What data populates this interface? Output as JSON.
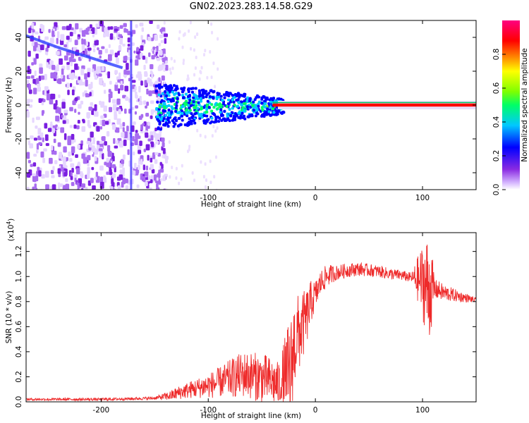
{
  "title": "GN02.2023.283.14.58.G29",
  "chart_data": [
    {
      "type": "heatmap",
      "title": "",
      "xlabel": "Height of straight line (km)",
      "ylabel": "Frequency (Hz)",
      "xlim": [
        -270,
        150
      ],
      "ylim": [
        -50,
        50
      ],
      "xticks": [
        -200,
        -100,
        0,
        100
      ],
      "yticks": [
        -40,
        -20,
        0,
        20,
        40
      ],
      "xtick_labels": [
        "-200",
        "-100",
        "0",
        "100"
      ],
      "ytick_labels": [
        "-40",
        "-20",
        "0",
        "20",
        "40"
      ],
      "colorbar": {
        "label": "Normalized spectral amplitude",
        "range": [
          0.0,
          1.0
        ],
        "ticks": [
          0.0,
          0.2,
          0.4,
          0.6,
          0.8
        ],
        "tick_labels": [
          "0.0",
          "0.2",
          "0.4",
          "0.6",
          "0.8"
        ],
        "colormap": [
          "#ffffff",
          "#d6b8ff",
          "#8a2be2",
          "#0000ff",
          "#00c8ff",
          "#00ff66",
          "#7fff00",
          "#ffff00",
          "#ff8c00",
          "#ff0000",
          "#ff0080"
        ]
      },
      "features": {
        "carrier_line_frequency_hz": 0,
        "strong_carrier_from_km": -35,
        "noise_region_km": [
          -270,
          -150
        ],
        "scintillation_region_km": [
          -150,
          -35
        ],
        "bright_vertical_stripe_km": -172,
        "diagonal_trace_points": [
          [
            -270,
            41
          ],
          [
            -240,
            34
          ],
          [
            -210,
            28
          ],
          [
            -180,
            22
          ]
        ]
      }
    },
    {
      "type": "line",
      "title": "",
      "xlabel": "Height of straight line (km)",
      "ylabel": "SNR (10 * v/v)",
      "multiplier_label": "(x10",
      "multiplier_exponent": "4",
      "multiplier_close": ")",
      "xlim": [
        -270,
        150
      ],
      "ylim": [
        0,
        1.35
      ],
      "xticks": [
        -200,
        -100,
        0,
        100
      ],
      "yticks": [
        0.0,
        0.2,
        0.4,
        0.6,
        0.8,
        1.0,
        1.2
      ],
      "xtick_labels": [
        "-200",
        "-100",
        "0",
        "100"
      ],
      "ytick_labels": [
        "0.0",
        "0.2",
        "0.4",
        "0.6",
        "0.8",
        "1.0",
        "1.2"
      ],
      "line_color": "#ee2a2a",
      "series": [
        {
          "values_x": [
            -270,
            -240,
            -200,
            -170,
            -150,
            -135,
            -125,
            -115,
            -105,
            -95,
            -85,
            -75,
            -65,
            -55,
            -45,
            -38,
            -32,
            -25,
            -22,
            -20,
            -18,
            -15,
            -12,
            -8,
            -4,
            0,
            5,
            10,
            15,
            20,
            25,
            30,
            40,
            50,
            60,
            70,
            80,
            90,
            95,
            100,
            103,
            106,
            110,
            115,
            120,
            130,
            140,
            150
          ],
          "values_y": [
            0.02,
            0.02,
            0.02,
            0.025,
            0.03,
            0.05,
            0.08,
            0.1,
            0.12,
            0.14,
            0.17,
            0.2,
            0.22,
            0.2,
            0.18,
            0.15,
            0.13,
            0.2,
            0.3,
            0.45,
            0.5,
            0.55,
            0.6,
            0.68,
            0.8,
            0.85,
            0.95,
            1.0,
            1.02,
            1.03,
            1.04,
            1.05,
            1.06,
            1.05,
            1.04,
            1.02,
            1.01,
            0.99,
            0.98,
            0.96,
            0.93,
            0.9,
            0.9,
            0.89,
            0.87,
            0.85,
            0.83,
            0.81
          ]
        }
      ],
      "noise_envelope": {
        "x": [
          -270,
          -150,
          -130,
          -110,
          -90,
          -70,
          -50,
          -35,
          -25,
          -18,
          -10,
          0,
          20,
          90,
          100,
          106,
          112,
          150
        ],
        "amp": [
          0.01,
          0.012,
          0.05,
          0.08,
          0.12,
          0.18,
          0.2,
          0.18,
          0.45,
          0.35,
          0.25,
          0.12,
          0.06,
          0.04,
          0.3,
          0.45,
          0.08,
          0.02
        ]
      }
    }
  ]
}
